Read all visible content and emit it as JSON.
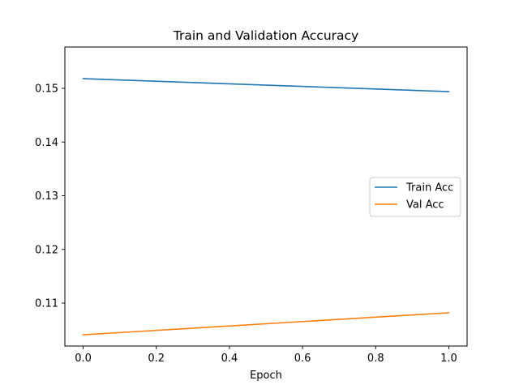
{
  "chart_data": {
    "type": "line",
    "title": "Train and Validation Accuracy",
    "xlabel": "Epoch",
    "ylabel": "",
    "xlim": [
      -0.05,
      1.05
    ],
    "ylim": [
      0.102,
      0.1577
    ],
    "xticks": [
      0.0,
      0.2,
      0.4,
      0.6,
      0.8,
      1.0
    ],
    "xtick_labels": [
      "0.0",
      "0.2",
      "0.4",
      "0.6",
      "0.8",
      "1.0"
    ],
    "yticks": [
      0.11,
      0.12,
      0.13,
      0.14,
      0.15
    ],
    "ytick_labels": [
      "0.11",
      "0.12",
      "0.13",
      "0.14",
      "0.15"
    ],
    "grid": false,
    "legend_position": "center-right",
    "series": [
      {
        "name": "Train Acc",
        "color": "#1f77b4",
        "x": [
          0,
          1
        ],
        "y": [
          0.1518,
          0.1494
        ]
      },
      {
        "name": "Val Acc",
        "color": "#ff7f0e",
        "x": [
          0,
          1
        ],
        "y": [
          0.1041,
          0.1082
        ]
      }
    ]
  }
}
